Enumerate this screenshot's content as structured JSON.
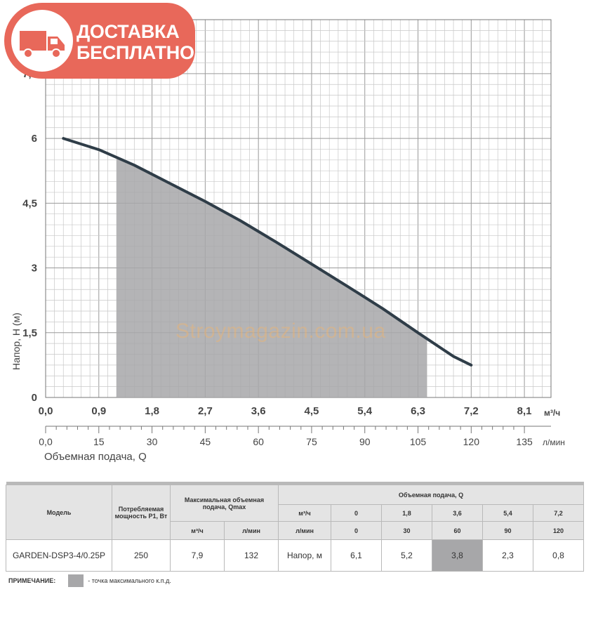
{
  "badge": {
    "line1": "ДОСТАВКА",
    "line2": "БЕСПЛАТНО",
    "icon": "truck-icon"
  },
  "watermark": "Stroymagazin.com.ua",
  "chart_data": {
    "type": "line",
    "ylabel": "Напор, H (м)",
    "xlabel": "Объемная подача, Q",
    "x_unit_m3h": "м³/ч",
    "x_unit_lmin": "л/мин",
    "yticks": [
      "0",
      "1,5",
      "3",
      "4,5",
      "6",
      "7,5"
    ],
    "xticks_m3h": [
      "0,0",
      "0,9",
      "1,8",
      "2,7",
      "3,6",
      "4,5",
      "5,4",
      "6,3",
      "7,2",
      "8,1"
    ],
    "xticks_lmin": [
      "0,0",
      "15",
      "30",
      "45",
      "60",
      "75",
      "90",
      "105",
      "120",
      "135"
    ],
    "ylim": [
      0,
      8.75
    ],
    "xlim_m3h": [
      0,
      8.55
    ],
    "grid": true,
    "series": [
      {
        "x": [
          0.3,
          0.9,
          1.5,
          2.1,
          2.7,
          3.3,
          3.9,
          4.5,
          5.1,
          5.7,
          6.3,
          6.9,
          7.2
        ],
        "y": [
          6.0,
          5.74,
          5.38,
          4.96,
          4.54,
          4.09,
          3.6,
          3.09,
          2.58,
          2.06,
          1.5,
          0.95,
          0.75
        ]
      }
    ],
    "shaded_region": {
      "x_from": 1.2,
      "x_to": 6.45
    },
    "colors": {
      "curve": "#2f3d48",
      "shade": "#a7a7a9",
      "grid": "#c8c8c8"
    }
  },
  "table": {
    "h_model": "Модель",
    "h_power": "Потребляемая мощность Р1, Вт",
    "h_qmax": "Максимальная объемная подача, Qmax",
    "h_flow": "Объемная подача, Q",
    "u_m3h": "м³/ч",
    "u_lmin": "л/мин",
    "flow_m3h": [
      "0",
      "1,8",
      "3,6",
      "5,4",
      "7,2"
    ],
    "flow_lmin": [
      "0",
      "30",
      "60",
      "90",
      "120"
    ],
    "row": {
      "model": "GARDEN-DSP3-4/0.25P",
      "power": "250",
      "qmax_m3h": "7,9",
      "qmax_lmin": "132",
      "head_label": "Напор, м",
      "heads": [
        "6,1",
        "5,2",
        "3,8",
        "2,3",
        "0,8"
      ]
    }
  },
  "note": {
    "label": "ПРИМЕЧАНИЕ:",
    "text": "- точка максимального к.п.д."
  }
}
